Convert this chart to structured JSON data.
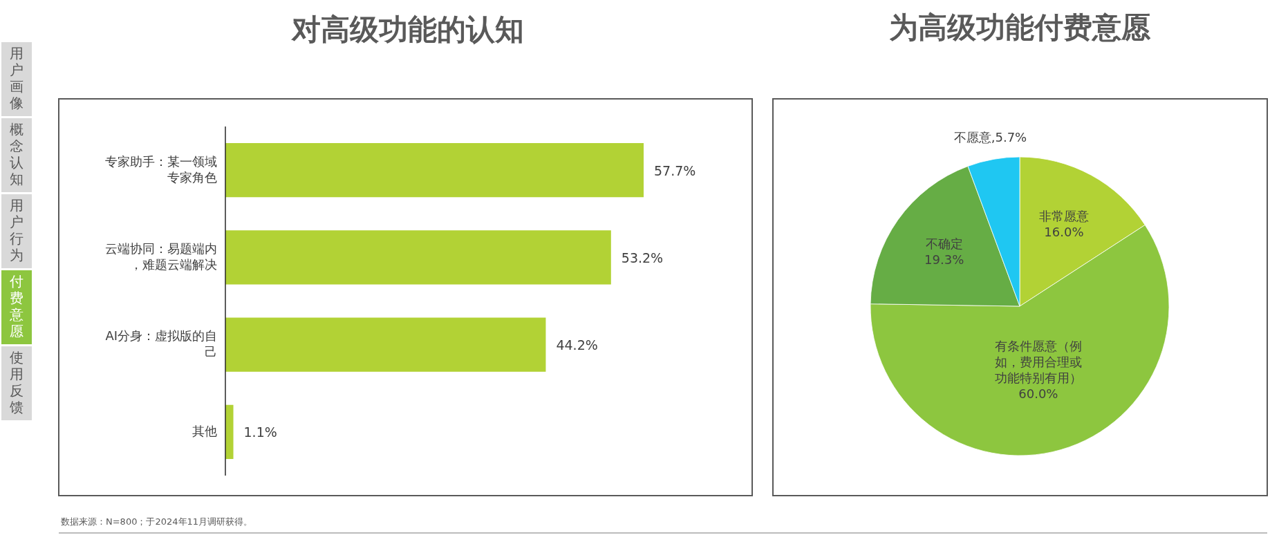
{
  "chart_data": [
    {
      "type": "other",
      "categories": [
        "用户画像",
        "概念认知",
        "用户行为",
        "付费意愿",
        "使用反馈"
      ],
      "colors": [
        "#d9d9d9",
        "#d9d9d9",
        "#d9d9d9",
        "#8dc63f",
        "#d9d9d9"
      ],
      "annotations": [
        "数据来源：N=800；于2024年11月调研获得。"
      ]
    },
    {
      "type": "bar",
      "title": "对高级功能的认知",
      "orientation": "horizontal",
      "categories": [
        "专家助手：某一领域专家角色",
        "云端协同：易题端内，难题云端解决",
        "AI分身：虚拟版的自己",
        "其他"
      ],
      "values": [
        57.7,
        53.2,
        44.2,
        1.1
      ],
      "color": "#b2d235",
      "value_labels": [
        "57.7%",
        "53.2%",
        "44.2%",
        "1.1%"
      ]
    },
    {
      "type": "pie",
      "title": "为高级功能付费意愿",
      "categories": [
        "非常愿意",
        "有条件愿意（例如，费用合理或功能特别有用）",
        "不确定",
        "不愿意"
      ],
      "values": [
        16.0,
        60.0,
        19.3,
        5.7
      ],
      "colors": [
        "#b2d235",
        "#8dc63f",
        "#66ad45",
        "#1fc7f2"
      ],
      "value_labels": [
        "16.0%",
        "60.0%",
        "19.3%",
        "5.7%"
      ]
    }
  ]
}
